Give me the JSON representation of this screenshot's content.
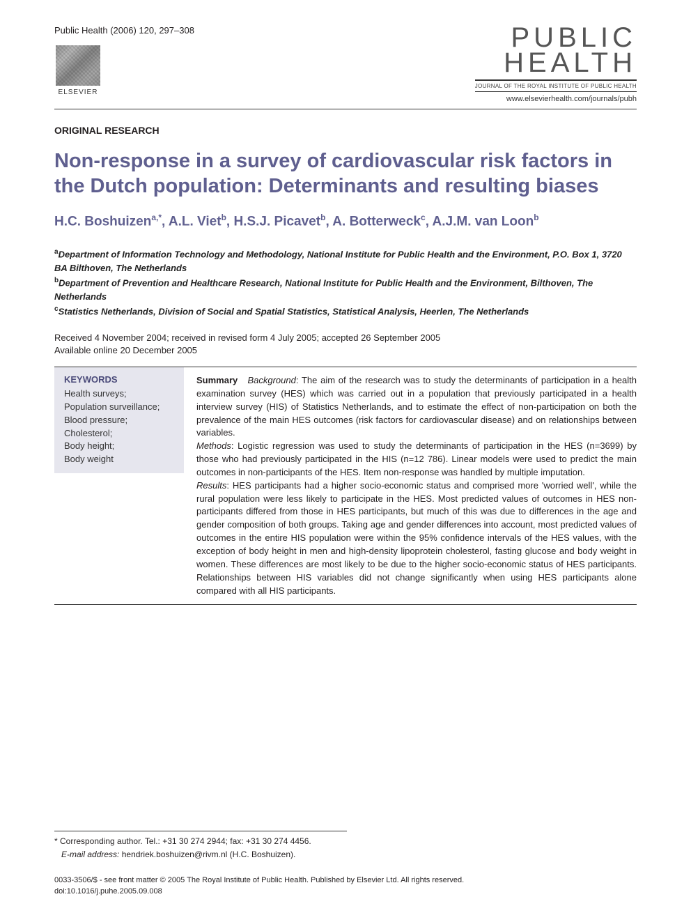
{
  "journal_ref": "Public Health (2006) 120, 297–308",
  "publisher_logo_text": "ELSEVIER",
  "journal_logo_line1": "PUBLIC",
  "journal_logo_line2": "HEALTH",
  "journal_tagline": "JOURNAL OF THE ROYAL INSTITUTE OF PUBLIC HEALTH",
  "journal_url": "www.elsevierhealth.com/journals/pubh",
  "article_type": "ORIGINAL RESEARCH",
  "title": "Non-response in a survey of cardiovascular risk factors in the Dutch population: Determinants and resulting biases",
  "authors_html": "H.C. Boshuizen<sup>a,*</sup>, A.L. Viet<sup>b</sup>, H.S.J. Picavet<sup>b</sup>, A. Botterweck<sup>c</sup>, A.J.M. van Loon<sup>b</sup>",
  "affiliations": [
    {
      "sup": "a",
      "text": "Department of Information Technology and Methodology, National Institute for Public Health and the Environment, P.O. Box 1, 3720 BA Bilthoven, The Netherlands"
    },
    {
      "sup": "b",
      "text": "Department of Prevention and Healthcare Research, National Institute for Public Health and the Environment, Bilthoven, The Netherlands"
    },
    {
      "sup": "c",
      "text": "Statistics Netherlands, Division of Social and Spatial Statistics, Statistical Analysis, Heerlen, The Netherlands"
    }
  ],
  "dates_line1": "Received 4 November 2004; received in revised form 4 July 2005; accepted 26 September 2005",
  "dates_line2": "Available online 20 December 2005",
  "keywords_head": "KEYWORDS",
  "keywords": "Health surveys;\nPopulation surveillance;\nBlood pressure;\nCholesterol;\nBody height;\nBody weight",
  "summary_lead": "Summary",
  "summary_background_label": "Background",
  "summary_background": ": The aim of the research was to study the determinants of participation in a health examination survey (HES) which was carried out in a population that previously participated in a health interview survey (HIS) of Statistics Netherlands, and to estimate the effect of non-participation on both the prevalence of the main HES outcomes (risk factors for cardiovascular disease) and on relationships between variables.",
  "summary_methods_label": "Methods",
  "summary_methods": ": Logistic regression was used to study the determinants of participation in the HES (n=3699) by those who had previously participated in the HIS (n=12 786). Linear models were used to predict the main outcomes in non-participants of the HES. Item non-response was handled by multiple imputation.",
  "summary_results_label": "Results",
  "summary_results": ": HES participants had a higher socio-economic status and comprised more 'worried well', while the rural population were less likely to participate in the HES. Most predicted values of outcomes in HES non-participants differed from those in HES participants, but much of this was due to differences in the age and gender composition of both groups. Taking age and gender differences into account, most predicted values of outcomes in the entire HIS population were within the 95% confidence intervals of the HES values, with the exception of body height in men and high-density lipoprotein cholesterol, fasting glucose and body weight in women. These differences are most likely to be due to the higher socio-economic status of HES participants. Relationships between HIS variables did not change significantly when using HES participants alone compared with all HIS participants.",
  "corr_line": "* Corresponding author. Tel.: +31 30 274 2944; fax: +31 30 274 4456.",
  "email_label": "E-mail address:",
  "email_value": "hendriek.boshuizen@rivm.nl (H.C. Boshuizen).",
  "copyright_line1": "0033-3506/$ - see front matter © 2005 The Royal Institute of Public Health. Published by Elsevier Ltd. All rights reserved.",
  "copyright_line2": "doi:10.1016/j.puhe.2005.09.008",
  "colors": {
    "title_color": "#5f5f8f",
    "kw_bg": "#e6e6ee",
    "text": "#231f20"
  }
}
